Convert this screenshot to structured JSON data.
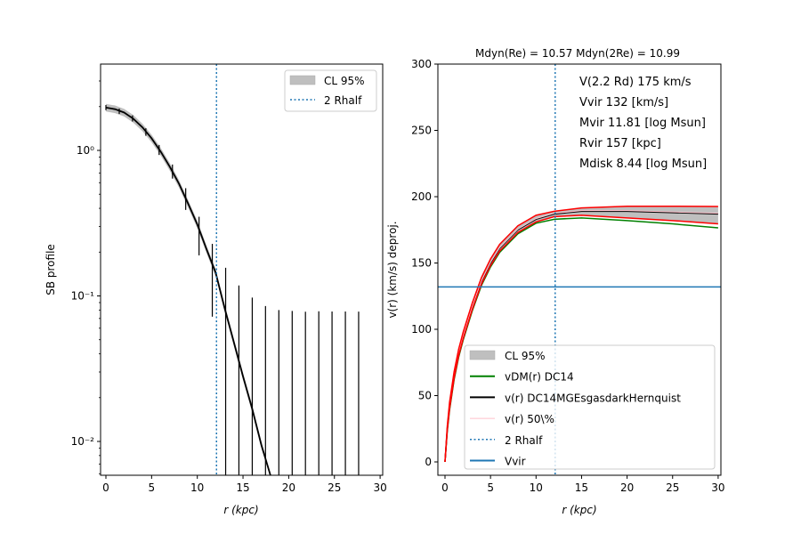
{
  "chart_data": [
    {
      "type": "line",
      "panel": "left",
      "title": "",
      "xlabel": "r (kpc)",
      "ylabel": "SB profile",
      "xlim": [
        -0.6,
        30.5
      ],
      "ylim": [
        0.0059,
        3.9
      ],
      "yscale": "log",
      "xticks": [
        0,
        5,
        10,
        15,
        20,
        25,
        30
      ],
      "xticklabels": [
        "0",
        "5",
        "10",
        "15",
        "20",
        "25",
        "30"
      ],
      "yticks": [
        1,
        0.1,
        0.01
      ],
      "yticklabels": [
        "10⁰",
        "10⁻¹",
        "10⁻²"
      ],
      "grid": false,
      "legend_position": "top-right",
      "legend": [
        "CL 95%",
        "2 Rhalf"
      ],
      "rhalf2": 12.1,
      "data_points": {
        "r": [
          0,
          1.46,
          2.91,
          4.37,
          5.82,
          7.28,
          8.73,
          10.19,
          11.64,
          13.1,
          14.55,
          16.01,
          17.46,
          18.92,
          20.38,
          21.83,
          23.29,
          24.74,
          26.2,
          27.65
        ],
        "sb": [
          1.97,
          1.86,
          1.66,
          1.34,
          1.01,
          0.72,
          0.47,
          0.27,
          0.15,
          0.076,
          0.035,
          0.0174,
          0.0082,
          0.0039,
          0.0018,
          0.00085,
          0.0004,
          0.00019,
          9e-05,
          4e-05
        ],
        "err": [
          0.08,
          0.08,
          0.08,
          0.08,
          0.08,
          0.08,
          0.08,
          0.08,
          0.078,
          0.08,
          0.083,
          0.08,
          0.077,
          0.076,
          0.077,
          0.077,
          0.078,
          0.078,
          0.078,
          0.078
        ]
      },
      "model": {
        "r": [
          0,
          1,
          2,
          3,
          4,
          5,
          6,
          7,
          8,
          9,
          10,
          11,
          12,
          13,
          14,
          15,
          16,
          17,
          18
        ],
        "sb": [
          1.97,
          1.92,
          1.82,
          1.65,
          1.44,
          1.21,
          0.98,
          0.77,
          0.59,
          0.43,
          0.31,
          0.21,
          0.145,
          0.082,
          0.048,
          0.028,
          0.0168,
          0.0095,
          0.0052
        ]
      },
      "cl_fraction": 0.06
    },
    {
      "type": "line",
      "panel": "right",
      "title": "Mdyn(Re) = 10.57  Mdyn(2Re) = 10.99",
      "xlabel": "r (kpc)",
      "ylabel": "v(r) (km/s) deproj.",
      "xlim": [
        -0.8,
        30.3
      ],
      "ylim": [
        -10,
        300
      ],
      "xticks": [
        0,
        5,
        10,
        15,
        20,
        25,
        30
      ],
      "xticklabels": [
        "0",
        "5",
        "10",
        "15",
        "20",
        "25",
        "30"
      ],
      "yticks": [
        0,
        50,
        100,
        150,
        200,
        250,
        300
      ],
      "yticklabels": [
        "0",
        "50",
        "100",
        "150",
        "200",
        "250",
        "300"
      ],
      "grid": false,
      "legend_position": "lower-right",
      "legend": [
        "CL 95%",
        "vDM(r) DC14",
        "v(r) DC14MGEsgasdarkHernquist",
        "v(r) 50\\%",
        "2 Rhalf",
        "Vvir"
      ],
      "annotations": [
        "V(2.2 Rd) 175 km/s",
        "Vvir 132 [km/s]",
        "Mvir 11.81 [log Msun]",
        "Rvir 157 [kpc]",
        "Mdisk 8.44 [log Msun]"
      ],
      "rhalf2": 12.1,
      "vvir": 132,
      "r": [
        0,
        0.25,
        0.5,
        1,
        1.5,
        2,
        3,
        4,
        5,
        6,
        8,
        10,
        12,
        15,
        20,
        25,
        30
      ],
      "series": [
        {
          "name": "CL upper",
          "color": "#ff0000",
          "values": [
            0,
            27,
            45,
            68,
            85,
            98,
            120,
            139,
            153,
            164,
            178,
            186,
            189,
            191.5,
            192.8,
            192.8,
            192.6
          ]
        },
        {
          "name": "CL lower",
          "color": "#ff0000",
          "values": [
            0,
            24,
            40,
            63,
            80,
            93,
            115,
            134,
            148,
            159,
            173,
            181,
            185,
            186,
            184,
            182,
            179.5
          ]
        },
        {
          "name": "vDM(r) DC14",
          "color": "#008000",
          "values": [
            0,
            23,
            39,
            62,
            79,
            92,
            114,
            133,
            147,
            158,
            172,
            180,
            183,
            184,
            182,
            179.5,
            176.5
          ]
        },
        {
          "name": "v(r) DC14MGEsgasdarkHernquist",
          "color": "#000000",
          "values": [
            0,
            25,
            42,
            65,
            82,
            95,
            117,
            136,
            150,
            161,
            175,
            183,
            187,
            189,
            189,
            188,
            187
          ]
        },
        {
          "name": "v(r) 50\\%",
          "color": "#ffc0cb",
          "values": [
            0,
            25.5,
            42.5,
            65.5,
            82.5,
            95.5,
            117.5,
            136.5,
            150.5,
            161.5,
            175.5,
            183.5,
            187.5,
            189.5,
            189.5,
            188.5,
            187.5
          ]
        }
      ]
    }
  ],
  "colors": {
    "rhalf": "#1f77b4",
    "vvir": "#1f77b4",
    "band": "#bfbfbf"
  }
}
